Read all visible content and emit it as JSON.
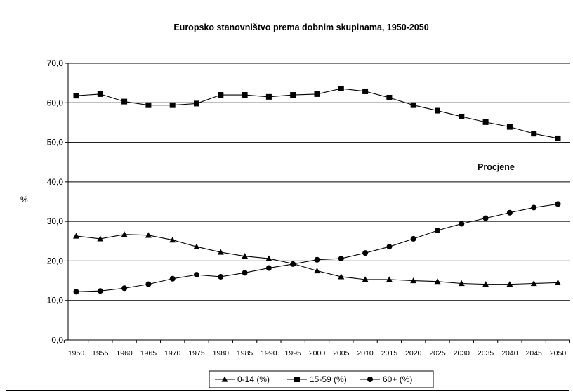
{
  "chart_data": {
    "type": "line",
    "title": "Europsko stanovništvo prema dobnim skupinama, 1950-2050",
    "xlabel": "",
    "ylabel": "%",
    "ylim": [
      0,
      70
    ],
    "yticks": [
      "0,0",
      "10,0",
      "20,0",
      "30,0",
      "40,0",
      "50,0",
      "60,0",
      "70,0"
    ],
    "grid": true,
    "legend_position": "bottom",
    "annotation": "Procjene",
    "x": [
      "1950",
      "1955",
      "1960",
      "1965",
      "1970",
      "1975",
      "1980",
      "1985",
      "1990",
      "1995",
      "2000",
      "2005",
      "2010",
      "2015",
      "2020",
      "2025",
      "2030",
      "2035",
      "2040",
      "2045",
      "2050"
    ],
    "series": [
      {
        "name": "0-14 (%)",
        "marker": "triangle",
        "color": "#000000",
        "values": [
          26.3,
          25.6,
          26.7,
          26.5,
          25.3,
          23.6,
          22.2,
          21.2,
          20.6,
          19.3,
          17.5,
          16.0,
          15.3,
          15.3,
          15.0,
          14.8,
          14.3,
          14.1,
          14.1,
          14.3,
          14.5
        ]
      },
      {
        "name": "15-59 (%)",
        "marker": "square",
        "color": "#000000",
        "values": [
          61.8,
          62.2,
          60.3,
          59.4,
          59.4,
          59.8,
          62.0,
          62.0,
          61.5,
          62.0,
          62.2,
          63.6,
          62.9,
          61.3,
          59.4,
          58.0,
          56.5,
          55.1,
          53.9,
          52.2,
          51.0
        ]
      },
      {
        "name": "60+ (%)",
        "marker": "circle",
        "color": "#000000",
        "values": [
          12.2,
          12.4,
          13.1,
          14.1,
          15.5,
          16.5,
          16.0,
          17.0,
          18.2,
          19.2,
          20.3,
          20.6,
          22.0,
          23.6,
          25.6,
          27.7,
          29.4,
          30.8,
          32.2,
          33.5,
          34.4
        ]
      }
    ]
  }
}
